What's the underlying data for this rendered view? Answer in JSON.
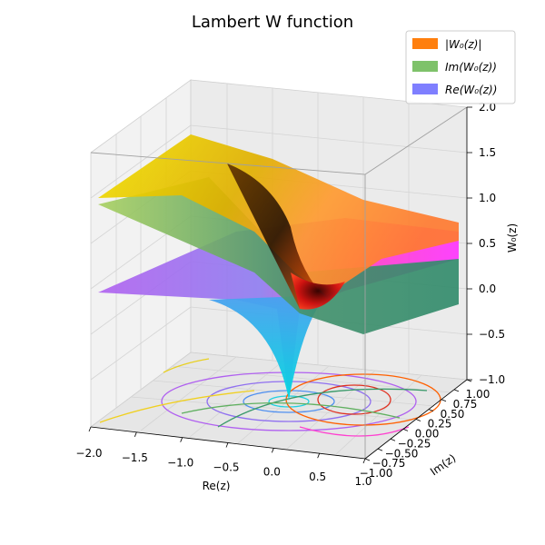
{
  "chart_data": {
    "type": "surface3d",
    "title": "Lambert W function",
    "xlabel": "Re(z)",
    "ylabel": "Im(z)",
    "zlabel": "W₀(z)",
    "xlim": [
      -2.0,
      1.0
    ],
    "ylim": [
      -1.0,
      1.0
    ],
    "zlim": [
      -1.0,
      2.0
    ],
    "xticks": [
      "−2.0",
      "−1.5",
      "−1.0",
      "−0.5",
      "0.0",
      "0.5",
      "1.0"
    ],
    "yticks": [
      "−1.00",
      "−0.75",
      "−0.50",
      "−0.25",
      "0.00",
      "0.25",
      "0.50",
      "0.75",
      "1.00"
    ],
    "zticks": [
      "−1.0",
      "−0.5",
      "0.0",
      "0.5",
      "1.0",
      "1.5",
      "2.0"
    ],
    "grid": true,
    "legend_position": "top-right",
    "legend": [
      {
        "label": "|W₀(z)|",
        "color": "#ff7f0e"
      },
      {
        "label": "Im(W₀(z))",
        "color": "#7ec26a"
      },
      {
        "label": "Re(W₀(z))",
        "color": "#7f7fff"
      }
    ],
    "series": [
      {
        "name": "|W₀(z)|",
        "colormap": "autumn/yellow-orange",
        "values_note": ""
      },
      {
        "name": "Im(W₀(z))",
        "colormap": "summer/green"
      },
      {
        "name": "Re(W₀(z))",
        "colormap": "cool/cyan-magenta"
      }
    ]
  }
}
